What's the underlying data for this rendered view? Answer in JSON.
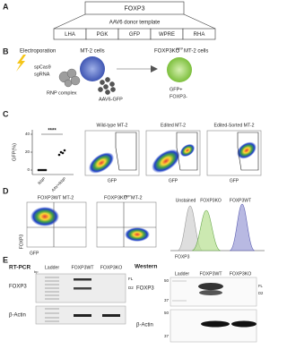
{
  "panel_a": {
    "label": "A",
    "gene": "FOXP3",
    "template_title": "AAV6 donor template",
    "elements": [
      "LHA",
      "PGK",
      "GFP",
      "WPRE",
      "RHA"
    ]
  },
  "panel_b": {
    "label": "B",
    "electroporation": "Electroporation",
    "cas9": "spCas9",
    "sgrna": "sgRNA",
    "rnp": "RNP complex",
    "aav": "AAV6-GFP",
    "cells": "MT-2 cells",
    "ko_cells": {
      "name": "FOXP3KO",
      "superscript": "GFP",
      "suffix": "MT-2 cells"
    },
    "phenotype": [
      "GFP+",
      "FOXP3-"
    ]
  },
  "panel_c": {
    "label": "C",
    "significance": "****",
    "y_label": "GFP(%)",
    "ylim": [
      -5,
      45
    ],
    "yticks": [
      0,
      20,
      40
    ],
    "categories": [
      "RNP",
      "AAV+RNP"
    ],
    "points": [
      [
        0,
        0,
        0,
        0,
        0
      ],
      [
        17,
        20,
        19,
        22
      ]
    ],
    "plots": [
      "Wild-type MT-2",
      "Edited MT-2",
      "Edited-Sorted MT-2"
    ],
    "x_label": "GFP"
  },
  "panel_d": {
    "label": "D",
    "plots": [
      "FOXP3WT MT-2",
      {
        "name": "FOXP3KO",
        "superscript": "GFP",
        "suffix": "MT-2"
      }
    ],
    "y_label": "FOXP3",
    "x_label": "GFP",
    "histogram": {
      "legend": [
        "Unstained",
        "FOXP3KO",
        "FOXP3WT"
      ],
      "x_label": "FOXP3"
    }
  },
  "panel_e": {
    "label": "E",
    "rtpcr": {
      "title": "RT-PCR",
      "unit": "bp",
      "lanes": [
        "Ladder",
        "FOXP3WT",
        "FOXP3KO"
      ],
      "rows": [
        "FOXP3",
        "β-Actin"
      ],
      "isoforms": [
        "FL",
        "D2"
      ]
    },
    "western": {
      "title": "Western",
      "lanes": [
        "Ladder",
        "FOXP3WT",
        "FOXP3KO"
      ],
      "rows": [
        "FOXP3",
        "β-Actin"
      ],
      "markers": [
        "50",
        "37"
      ],
      "isoforms": [
        "FL",
        "D2"
      ]
    }
  }
}
